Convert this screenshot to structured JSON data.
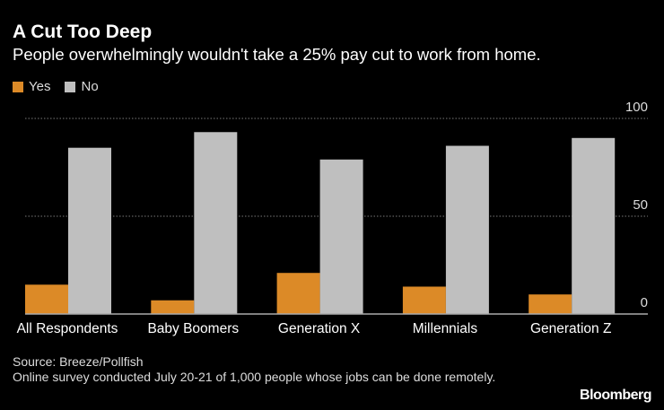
{
  "header": {
    "title": "A Cut Too Deep",
    "subtitle": "People overwhelmingly wouldn't take a 25% pay cut to work from home."
  },
  "footer": {
    "source": "Source: Breeze/Pollfish",
    "note": "Online survey conducted July 20-21 of 1,000 people whose jobs can be done remotely.",
    "logo": "Bloomberg"
  },
  "chart_data": {
    "type": "bar",
    "title": "A Cut Too Deep",
    "subtitle": "People overwhelmingly wouldn't take a 25% pay cut to work from home.",
    "categories": [
      "All Respondents",
      "Baby Boomers",
      "Generation X",
      "Millennials",
      "Generation Z"
    ],
    "series": [
      {
        "name": "Yes",
        "color": "#dc8a27",
        "values": [
          15,
          7,
          21,
          14,
          10
        ]
      },
      {
        "name": "No",
        "color": "#bfbfbf",
        "values": [
          85,
          93,
          79,
          86,
          90
        ]
      }
    ],
    "ylim": [
      0,
      100
    ],
    "yticks": [
      "0",
      "50",
      "100"
    ],
    "y_axis_side": "right",
    "grid": true,
    "legend_placement": "top-left"
  }
}
